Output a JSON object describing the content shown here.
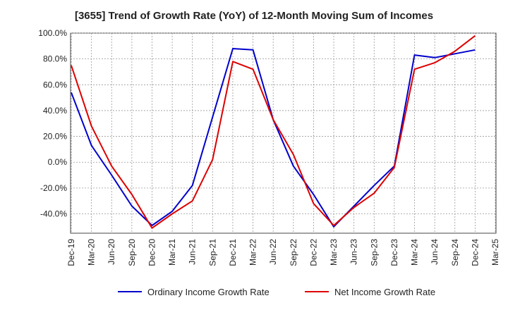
{
  "chart_data": {
    "type": "line",
    "title": "[3655]  Trend of Growth Rate (YoY) of 12-Month Moving Sum of Incomes",
    "xlabel": "",
    "ylabel": "",
    "x": [
      "Dec-19",
      "Mar-20",
      "Jun-20",
      "Sep-20",
      "Dec-20",
      "Mar-21",
      "Jun-21",
      "Sep-21",
      "Dec-21",
      "Mar-22",
      "Jun-22",
      "Sep-22",
      "Dec-22",
      "Mar-23",
      "Jun-23",
      "Sep-23",
      "Dec-23",
      "Mar-24",
      "Jun-24",
      "Sep-24",
      "Dec-24",
      "Mar-25"
    ],
    "ylim": [
      -55,
      100
    ],
    "yticks": [
      100,
      80,
      60,
      40,
      20,
      0,
      -20,
      -40
    ],
    "ytick_labels": [
      "100.0%",
      "80.0%",
      "60.0%",
      "40.0%",
      "20.0%",
      "0.0%",
      "-20.0%",
      "-40.0%"
    ],
    "grid": true,
    "legend_position": "bottom",
    "series": [
      {
        "name": "Ordinary Income Growth Rate",
        "color": "#0000cc",
        "values": [
          54,
          13,
          -10,
          -34,
          -49,
          -38,
          -18,
          35,
          88,
          87,
          33,
          -3,
          -25,
          -50,
          -34,
          -18,
          -3,
          83,
          81,
          84,
          87,
          null
        ]
      },
      {
        "name": "Net Income Growth Rate",
        "color": "#dd0000",
        "values": [
          75,
          28,
          -3,
          -25,
          -51,
          -40,
          -30,
          2,
          78,
          72,
          33,
          6,
          -32,
          -49,
          -35,
          -24,
          -4,
          72,
          77,
          86,
          98,
          null
        ]
      }
    ]
  }
}
